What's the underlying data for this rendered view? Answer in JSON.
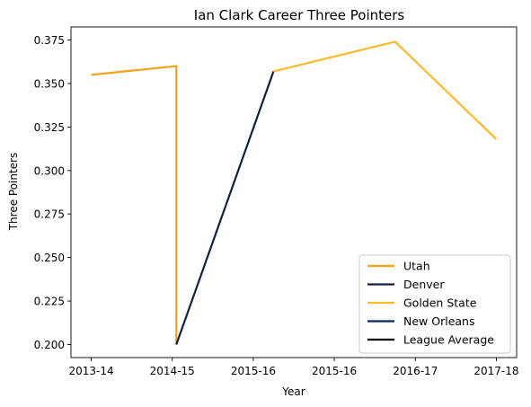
{
  "chart_data": {
    "type": "line",
    "title": "Ian Clark  Career Three Pointers",
    "xlabel": "Year",
    "ylabel": "Three Pointers",
    "x_ticks": [
      "2013-14",
      "2014-15",
      "2015-16",
      "2015-16",
      "2016-17",
      "2017-18"
    ],
    "x_range": [
      -0.25,
      5.25
    ],
    "ylim": [
      0.1925,
      0.3825
    ],
    "y_ticks": [
      0.2,
      0.225,
      0.25,
      0.275,
      0.3,
      0.325,
      0.35,
      0.375
    ],
    "y_tick_labels": [
      "0.200",
      "0.225",
      "0.250",
      "0.275",
      "0.300",
      "0.325",
      "0.350",
      "0.375"
    ],
    "grid": false,
    "legend_position": "lower-right",
    "series": [
      {
        "name": "Utah",
        "color": "#F9A01B",
        "x": [
          0,
          1.05,
          1.05
        ],
        "y": [
          0.355,
          0.36,
          0.2
        ]
      },
      {
        "name": "Denver",
        "color": "#0E2240",
        "x": [
          1.05,
          2.25
        ],
        "y": [
          0.2,
          0.357
        ]
      },
      {
        "name": "Golden State",
        "color": "#FDB927",
        "x": [
          2.25,
          3.75,
          5
        ],
        "y": [
          0.357,
          0.374,
          0.318
        ]
      },
      {
        "name": "New Orleans",
        "color": "#002B5C",
        "x": [],
        "y": []
      },
      {
        "name": "League Average",
        "color": "#000000",
        "x": [],
        "y": []
      }
    ]
  }
}
